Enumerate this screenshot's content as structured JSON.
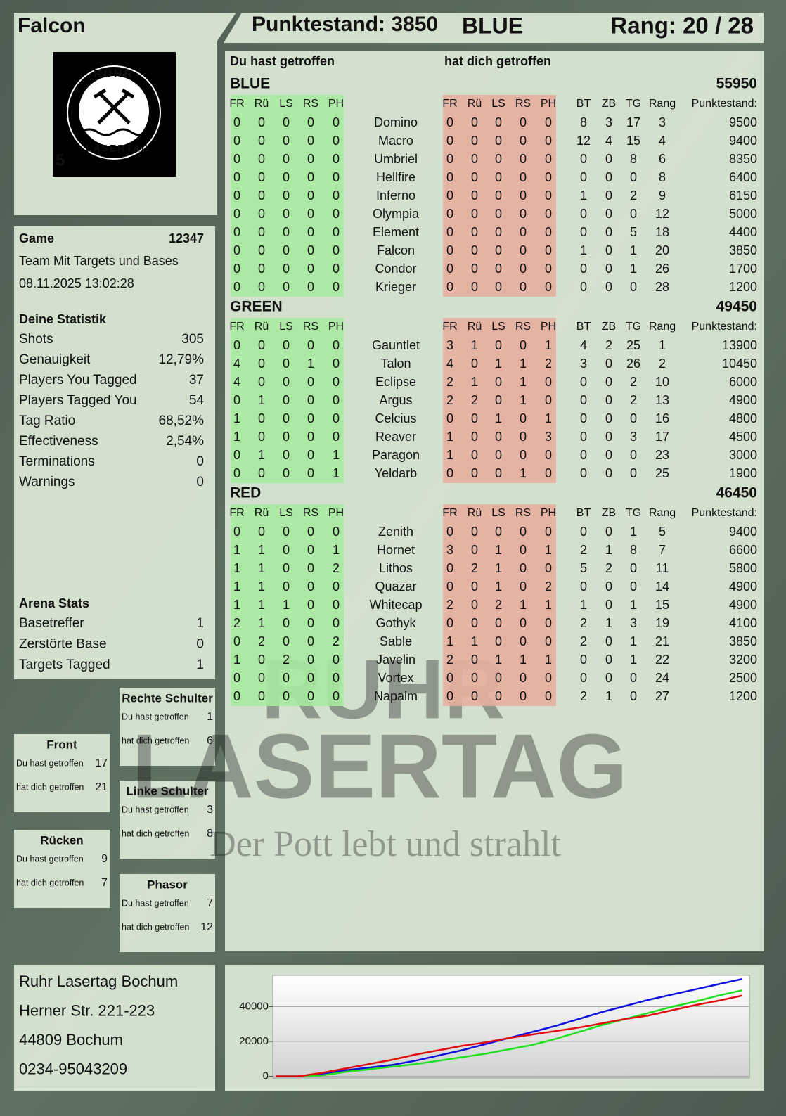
{
  "header": {
    "player": "Falcon",
    "score_text": "Punktestand: 3850",
    "team": "BLUE",
    "rank_text": "Rang: 20 / 28"
  },
  "logo": {
    "top": "RUHR",
    "bottom": "LASERTAG",
    "number": 5
  },
  "game": {
    "label": "Game",
    "id": 12347,
    "mode": "Team Mit Targets und Bases",
    "datetime": "08.11.2025 13:02:28"
  },
  "stats": {
    "title": "Deine Statistik",
    "items": [
      {
        "label": "Shots",
        "value": 305
      },
      {
        "label": "Genauigkeit",
        "value": "12,79%"
      },
      {
        "label": "Players You Tagged",
        "value": 37
      },
      {
        "label": "Players Tagged You",
        "value": 54
      },
      {
        "label": "Tag Ratio",
        "value": "68,52%"
      },
      {
        "label": "Effectiveness",
        "value": "2,54%"
      },
      {
        "label": "Terminations",
        "value": 0
      },
      {
        "label": "Warnings",
        "value": 0
      }
    ]
  },
  "arena": {
    "title": "Arena Stats",
    "items": [
      {
        "label": "Basetreffer",
        "value": 1
      },
      {
        "label": "Zerstörte Base",
        "value": 0
      },
      {
        "label": "Targets Tagged",
        "value": 1
      }
    ]
  },
  "hit_zones": [
    {
      "title": "Rechte Schulter",
      "given_label": "Du hast getroffen",
      "given": 1,
      "received_label": "hat dich getroffen",
      "received": 6
    },
    {
      "title": "Front",
      "given_label": "Du hast getroffen",
      "given": 17,
      "received_label": "hat dich getroffen",
      "received": 21
    },
    {
      "title": "Linke Schulter",
      "given_label": "Du hast getroffen",
      "given": 3,
      "received_label": "hat dich getroffen",
      "received": 8
    },
    {
      "title": "Rücken",
      "given_label": "Du hast getroffen",
      "given": 9,
      "received_label": "hat dich getroffen",
      "received": 7
    },
    {
      "title": "Phasor",
      "given_label": "Du hast getroffen",
      "given": 7,
      "received_label": "hat dich getroffen",
      "received": 12
    }
  ],
  "table": {
    "given_title": "Du hast getroffen",
    "received_title": "hat dich getroffen",
    "hit_columns": [
      "FR",
      "Rü",
      "LS",
      "RS",
      "PH"
    ],
    "stat_columns": [
      "BT",
      "ZB",
      "TG",
      "Rang",
      "Punktestand:"
    ],
    "teams": [
      {
        "name": "BLUE",
        "color": "#1414c8",
        "total": 55950,
        "rows": [
          {
            "player": "Domino",
            "given": [
              0,
              0,
              0,
              0,
              0
            ],
            "received": [
              0,
              0,
              0,
              0,
              0
            ],
            "stats": [
              8,
              3,
              17,
              3,
              9500
            ]
          },
          {
            "player": "Macro",
            "given": [
              0,
              0,
              0,
              0,
              0
            ],
            "received": [
              0,
              0,
              0,
              0,
              0
            ],
            "stats": [
              12,
              4,
              15,
              4,
              9400
            ]
          },
          {
            "player": "Umbriel",
            "given": [
              0,
              0,
              0,
              0,
              0
            ],
            "received": [
              0,
              0,
              0,
              0,
              0
            ],
            "stats": [
              0,
              0,
              8,
              6,
              8350
            ]
          },
          {
            "player": "Hellfire",
            "given": [
              0,
              0,
              0,
              0,
              0
            ],
            "received": [
              0,
              0,
              0,
              0,
              0
            ],
            "stats": [
              0,
              0,
              0,
              8,
              6400
            ]
          },
          {
            "player": "Inferno",
            "given": [
              0,
              0,
              0,
              0,
              0
            ],
            "received": [
              0,
              0,
              0,
              0,
              0
            ],
            "stats": [
              1,
              0,
              2,
              9,
              6150
            ]
          },
          {
            "player": "Olympia",
            "given": [
              0,
              0,
              0,
              0,
              0
            ],
            "received": [
              0,
              0,
              0,
              0,
              0
            ],
            "stats": [
              0,
              0,
              0,
              12,
              5000
            ]
          },
          {
            "player": "Element",
            "given": [
              0,
              0,
              0,
              0,
              0
            ],
            "received": [
              0,
              0,
              0,
              0,
              0
            ],
            "stats": [
              0,
              0,
              5,
              18,
              4400
            ]
          },
          {
            "player": "Falcon",
            "given": [
              0,
              0,
              0,
              0,
              0
            ],
            "received": [
              0,
              0,
              0,
              0,
              0
            ],
            "stats": [
              1,
              0,
              1,
              20,
              3850
            ]
          },
          {
            "player": "Condor",
            "given": [
              0,
              0,
              0,
              0,
              0
            ],
            "received": [
              0,
              0,
              0,
              0,
              0
            ],
            "stats": [
              0,
              0,
              1,
              26,
              1700
            ]
          },
          {
            "player": "Krieger",
            "given": [
              0,
              0,
              0,
              0,
              0
            ],
            "received": [
              0,
              0,
              0,
              0,
              0
            ],
            "stats": [
              0,
              0,
              0,
              28,
              1200
            ]
          }
        ]
      },
      {
        "name": "GREEN",
        "color": "#22d022",
        "total": 49450,
        "rows": [
          {
            "player": "Gauntlet",
            "given": [
              0,
              0,
              0,
              0,
              0
            ],
            "received": [
              3,
              1,
              0,
              0,
              1
            ],
            "stats": [
              4,
              2,
              25,
              1,
              13900
            ]
          },
          {
            "player": "Talon",
            "given": [
              4,
              0,
              0,
              1,
              0
            ],
            "received": [
              4,
              0,
              1,
              1,
              2
            ],
            "stats": [
              3,
              0,
              26,
              2,
              10450
            ]
          },
          {
            "player": "Eclipse",
            "given": [
              4,
              0,
              0,
              0,
              0
            ],
            "received": [
              2,
              1,
              0,
              1,
              0
            ],
            "stats": [
              0,
              0,
              2,
              10,
              6000
            ]
          },
          {
            "player": "Argus",
            "given": [
              0,
              1,
              0,
              0,
              0
            ],
            "received": [
              2,
              2,
              0,
              1,
              0
            ],
            "stats": [
              0,
              0,
              2,
              13,
              4900
            ]
          },
          {
            "player": "Celcius",
            "given": [
              1,
              0,
              0,
              0,
              0
            ],
            "received": [
              0,
              0,
              1,
              0,
              1
            ],
            "stats": [
              0,
              0,
              0,
              16,
              4800
            ]
          },
          {
            "player": "Reaver",
            "given": [
              1,
              0,
              0,
              0,
              0
            ],
            "received": [
              1,
              0,
              0,
              0,
              3
            ],
            "stats": [
              0,
              0,
              3,
              17,
              4500
            ]
          },
          {
            "player": "Paragon",
            "given": [
              0,
              1,
              0,
              0,
              1
            ],
            "received": [
              1,
              0,
              0,
              0,
              0
            ],
            "stats": [
              0,
              0,
              0,
              23,
              3000
            ]
          },
          {
            "player": "Yeldarb",
            "given": [
              0,
              0,
              0,
              0,
              1
            ],
            "received": [
              0,
              0,
              0,
              1,
              0
            ],
            "stats": [
              0,
              0,
              0,
              25,
              1900
            ]
          }
        ]
      },
      {
        "name": "RED",
        "color": "#e01414",
        "total": 46450,
        "rows": [
          {
            "player": "Zenith",
            "given": [
              0,
              0,
              0,
              0,
              0
            ],
            "received": [
              0,
              0,
              0,
              0,
              0
            ],
            "stats": [
              0,
              0,
              1,
              5,
              9400
            ]
          },
          {
            "player": "Hornet",
            "given": [
              1,
              1,
              0,
              0,
              1
            ],
            "received": [
              3,
              0,
              1,
              0,
              1
            ],
            "stats": [
              2,
              1,
              8,
              7,
              6600
            ]
          },
          {
            "player": "Lithos",
            "given": [
              1,
              1,
              0,
              0,
              2
            ],
            "received": [
              0,
              2,
              1,
              0,
              0
            ],
            "stats": [
              5,
              2,
              0,
              11,
              5800
            ]
          },
          {
            "player": "Quazar",
            "given": [
              1,
              1,
              0,
              0,
              0
            ],
            "received": [
              0,
              0,
              1,
              0,
              2
            ],
            "stats": [
              0,
              0,
              0,
              14,
              4900
            ]
          },
          {
            "player": "Whitecap",
            "given": [
              1,
              1,
              1,
              0,
              0
            ],
            "received": [
              2,
              0,
              2,
              1,
              1
            ],
            "stats": [
              1,
              0,
              1,
              15,
              4900
            ]
          },
          {
            "player": "Gothyk",
            "given": [
              2,
              1,
              0,
              0,
              0
            ],
            "received": [
              0,
              0,
              0,
              0,
              0
            ],
            "stats": [
              2,
              1,
              3,
              19,
              4100
            ]
          },
          {
            "player": "Sable",
            "given": [
              0,
              2,
              0,
              0,
              2
            ],
            "received": [
              1,
              1,
              0,
              0,
              0
            ],
            "stats": [
              2,
              0,
              1,
              21,
              3850
            ]
          },
          {
            "player": "Javelin",
            "given": [
              1,
              0,
              2,
              0,
              0
            ],
            "received": [
              2,
              0,
              1,
              1,
              1
            ],
            "stats": [
              0,
              0,
              1,
              22,
              3200
            ]
          },
          {
            "player": "Vortex",
            "given": [
              0,
              0,
              0,
              0,
              0
            ],
            "received": [
              0,
              0,
              0,
              0,
              0
            ],
            "stats": [
              0,
              0,
              0,
              24,
              2500
            ]
          },
          {
            "player": "Napalm",
            "given": [
              0,
              0,
              0,
              0,
              0
            ],
            "received": [
              0,
              0,
              0,
              0,
              0
            ],
            "stats": [
              2,
              1,
              0,
              27,
              1200
            ]
          }
        ]
      }
    ]
  },
  "address": [
    "Ruhr Lasertag Bochum",
    "Herner Str. 221-223",
    "44809 Bochum",
    "0234-95043209"
  ],
  "watermark": {
    "line1": "RUHR",
    "line2": "LASERTAG",
    "slogan": "Der Pott lebt und strahlt"
  },
  "chart": {
    "type": "line",
    "ylim": [
      -1000,
      58000
    ],
    "yticks": [
      0,
      20000,
      40000
    ],
    "grid": true,
    "series": [
      {
        "color": "#1010e0",
        "values": [
          0,
          0,
          1500,
          3500,
          5000,
          6500,
          9000,
          12000,
          15000,
          18500,
          22000,
          25500,
          29000,
          33000,
          37000,
          40500,
          44000,
          47000,
          50000,
          53000,
          55950
        ]
      },
      {
        "color": "#20e020",
        "values": [
          0,
          0,
          500,
          2500,
          4000,
          5500,
          7000,
          9000,
          11000,
          13000,
          15500,
          18000,
          21500,
          25500,
          29500,
          33000,
          36500,
          40000,
          43000,
          46500,
          49450
        ]
      },
      {
        "color": "#e01010",
        "values": [
          0,
          0,
          2000,
          4500,
          7000,
          9500,
          12500,
          15000,
          17500,
          19500,
          22000,
          24000,
          26000,
          28000,
          30500,
          33000,
          35000,
          38000,
          41000,
          43500,
          46450
        ]
      }
    ]
  }
}
